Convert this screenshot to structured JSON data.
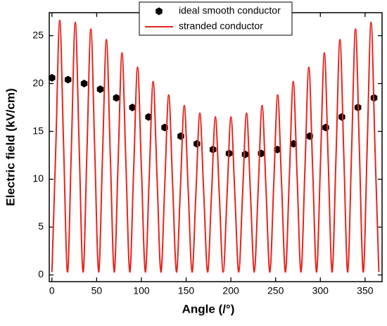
{
  "chart_data": {
    "type": "line",
    "x_label": "Angle (/°)",
    "y_label": "Electric field (kV/cm)",
    "xlim": [
      -3,
      369
    ],
    "ylim": [
      -0.7,
      27.4
    ],
    "xticks": [
      0,
      50,
      100,
      150,
      200,
      250,
      300,
      350
    ],
    "yticks": [
      0,
      5,
      10,
      15,
      20,
      25
    ],
    "legend": "upper center",
    "series": [
      {
        "name": "ideal smooth conductor",
        "kind": "scatter",
        "color": "#000000",
        "x": [
          0,
          18,
          36,
          54,
          72,
          90,
          108,
          126,
          144,
          162,
          180,
          198,
          216,
          234,
          252,
          270,
          288,
          306,
          324,
          342,
          360
        ],
        "values": [
          20.6,
          20.4,
          20.0,
          19.4,
          18.5,
          17.5,
          16.5,
          15.4,
          14.5,
          13.7,
          13.1,
          12.7,
          12.6,
          12.7,
          13.1,
          13.7,
          14.5,
          15.4,
          16.5,
          17.5,
          18.5
        ]
      },
      {
        "name": "stranded conductor",
        "kind": "line",
        "color": "#e8231c",
        "x": [
          0,
          4.35,
          8.7,
          13.05,
          17.4,
          21.75,
          26.1,
          30.45,
          34.8,
          39.15,
          43.5,
          47.85,
          52.2,
          56.55,
          60.9,
          65.25,
          69.6,
          73.95,
          78.3,
          82.65,
          87,
          91.35,
          95.7,
          100.05,
          104.4,
          108.75,
          113.1,
          117.45,
          121.8,
          126.15,
          130.5,
          134.85,
          139.2,
          143.55,
          147.9,
          152.25,
          156.6,
          160.95,
          165.3,
          169.65,
          174,
          178.35,
          182.7,
          187.05,
          191.4,
          195.75,
          200.1,
          204.45,
          208.8,
          213.15,
          217.5,
          221.85,
          226.2,
          230.55,
          234.9,
          239.25,
          243.6,
          247.95,
          252.3,
          256.65,
          261,
          265.35,
          269.7,
          274.05,
          278.4,
          282.75,
          287.1,
          291.45,
          295.8,
          300.15,
          304.5,
          308.85,
          313.2,
          317.55,
          321.9,
          326.25,
          330.6,
          334.95,
          339.3,
          343.65,
          348,
          352.35,
          356.7,
          361.05,
          365.4
        ],
        "values": [
          0.3,
          13.45,
          26.6,
          13.45,
          0.3,
          13.35,
          26.4,
          13.35,
          0.3,
          13,
          25.7,
          13,
          0.3,
          12.45,
          24.6,
          12.45,
          0.3,
          11.75,
          23.2,
          11.75,
          0.3,
          11,
          21.7,
          11,
          0.3,
          10.25,
          20.2,
          10.25,
          0.3,
          9.55,
          18.8,
          9.55,
          0.3,
          9,
          17.7,
          9,
          0.3,
          8.6,
          16.9,
          8.6,
          0.3,
          8.4,
          16.5,
          8.4,
          0.3,
          8.4,
          16.5,
          8.4,
          0.3,
          8.6,
          16.9,
          8.6,
          0.3,
          9,
          17.7,
          9,
          0.3,
          9.55,
          18.8,
          9.55,
          0.3,
          10.25,
          20.2,
          10.25,
          0.3,
          11,
          21.7,
          11,
          0.3,
          11.75,
          23.2,
          11.75,
          0.3,
          12.45,
          24.6,
          12.45,
          0.3,
          13,
          25.7,
          13,
          0.3,
          13.35,
          26.4,
          13.35,
          0.3
        ]
      }
    ]
  }
}
